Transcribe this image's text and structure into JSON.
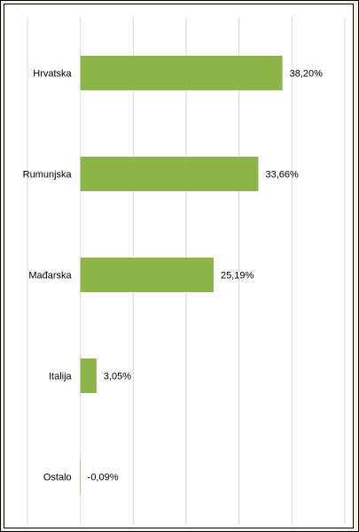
{
  "chart_data": {
    "type": "bar",
    "orientation": "horizontal",
    "categories": [
      "Hrvatska",
      "Rumunjska",
      "Mađarska",
      "Italija",
      "Ostalo"
    ],
    "values": [
      38.2,
      33.66,
      25.19,
      3.05,
      -0.09
    ],
    "data_labels": [
      "38,20%",
      "33,66%",
      "25,19%",
      "3,05%",
      "-0,09%"
    ],
    "xlim": [
      -10,
      50
    ],
    "grid": true,
    "legend": "none",
    "bar_color": "#8db44b"
  },
  "colors": {
    "background": "#f5f2dc",
    "panel": "#ffffff",
    "gridline": "#d9d9d9",
    "bar": "#8db44b"
  }
}
